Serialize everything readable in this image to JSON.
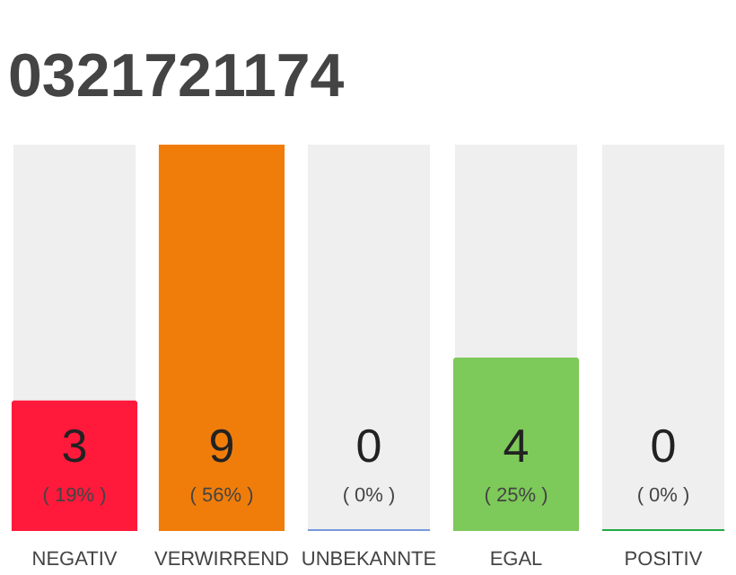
{
  "chart_data": {
    "type": "bar",
    "title": "0321721174",
    "categories": [
      "NEGATIV",
      "VERWIRREND",
      "UNBEKANNTE",
      "EGAL",
      "POSITIV"
    ],
    "values": [
      3,
      9,
      0,
      4,
      0
    ],
    "colors": [
      "#ff1a3c",
      "#f07d0a",
      "#7799dd",
      "#7dc95a",
      "#22aa44"
    ],
    "data_labels": true,
    "annotations": [
      "( 19% )",
      "( 56% )",
      "( 0% )",
      "( 25% )",
      "( 0% )"
    ],
    "grid": false
  }
}
